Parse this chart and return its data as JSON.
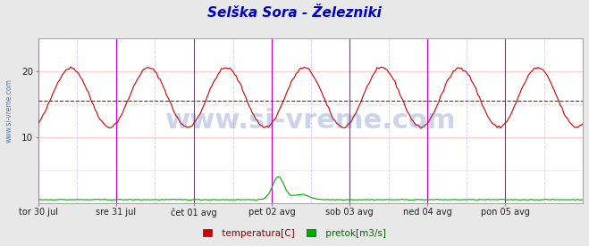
{
  "title": "Selška Sora - Železniki",
  "title_color": "#0000cc",
  "title_fontsize": 11,
  "bg_color": "#e8e8e8",
  "plot_bg_color": "#ffffff",
  "grid_color": "#ffcccc",
  "yticks": [
    10,
    20
  ],
  "ylim": [
    0,
    25
  ],
  "ylim_display_max": 22,
  "xlim": [
    0,
    336
  ],
  "xtick_labels": [
    "tor 30 jul",
    "sre 31 jul",
    "čet 01 avg",
    "pet 02 avg",
    "sob 03 avg",
    "ned 04 avg",
    "pon 05 avg"
  ],
  "xtick_positions": [
    0,
    48,
    96,
    144,
    192,
    240,
    288
  ],
  "vline_positions": [
    0,
    48,
    96,
    144,
    192,
    240,
    288,
    336
  ],
  "vline_color_midnight": "#cc00cc",
  "vline_color_noon": "#ccccff",
  "avg_line_value": 15.5,
  "avg_line_color": "#cc0000",
  "temp_color": "#cc0000",
  "flow_color": "#00aa00",
  "watermark_text": "www.si-vreme.com",
  "watermark_color": "#3355aa",
  "watermark_alpha": 0.25,
  "watermark_fontsize": 22,
  "legend_items": [
    "temperatura[C]",
    "pretok[m3/s]"
  ],
  "legend_colors": [
    "#cc0000",
    "#00aa00"
  ],
  "n_points": 337,
  "sidebar_text": "www.si-vreme.com",
  "sidebar_color": "#3366bb"
}
